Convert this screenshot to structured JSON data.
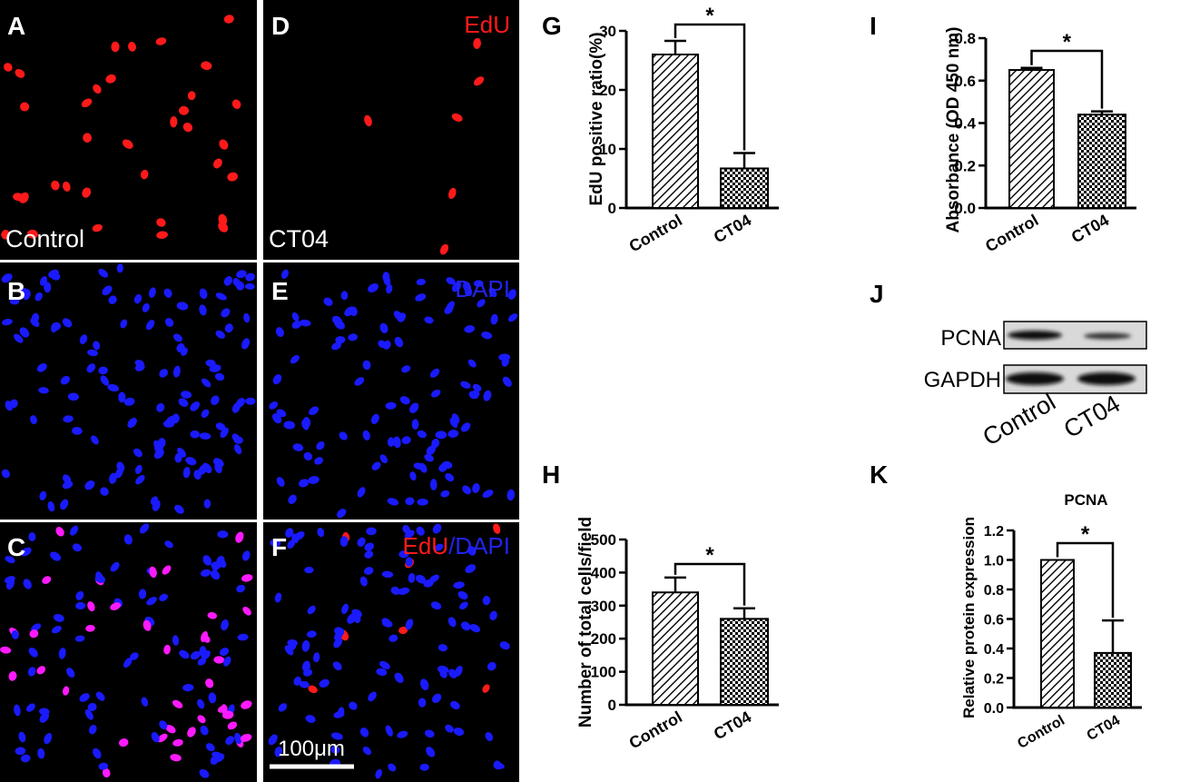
{
  "micrograph_panels": [
    {
      "letter": "A",
      "corner_text": "",
      "bottom_text": "Control"
    },
    {
      "letter": "B",
      "corner_text": "",
      "bottom_text": ""
    },
    {
      "letter": "C",
      "corner_text": "",
      "bottom_text": ""
    },
    {
      "letter": "D",
      "corner_text": "EdU",
      "bottom_text": "CT04"
    },
    {
      "letter": "E",
      "corner_text": "DAPI",
      "bottom_text": ""
    },
    {
      "letter": "F",
      "corner_text_red": "EdU",
      "corner_text_blue": "/DAPI",
      "bottom_text": ""
    }
  ],
  "scale_bar": {
    "label": "100μm"
  },
  "colors": {
    "edu": "#ff1a1a",
    "dapi": "#1a1aff",
    "merge": "#ff1aff",
    "background": "#000000"
  },
  "chart_data": [
    {
      "panel": "G",
      "type": "bar",
      "categories": [
        "Control",
        "CT04"
      ],
      "values": [
        26,
        6.7
      ],
      "errors": [
        2.3,
        2.6
      ],
      "ylabel": "EdU positive ratio(%)",
      "ylim": [
        0,
        30
      ],
      "yticks": [
        0,
        10,
        20,
        30
      ],
      "ytick_labels": [
        "0",
        "10",
        "20",
        "30"
      ],
      "significance": "*",
      "title": ""
    },
    {
      "panel": "H",
      "type": "bar",
      "categories": [
        "Control",
        "CT04"
      ],
      "values": [
        340,
        260
      ],
      "errors": [
        45,
        32
      ],
      "ylabel": "Number of total cells/field",
      "ylim": [
        0,
        500
      ],
      "yticks": [
        0,
        100,
        200,
        300,
        400,
        500
      ],
      "ytick_labels": [
        "0",
        "100",
        "200",
        "300",
        "400",
        "500"
      ],
      "significance": "*",
      "title": ""
    },
    {
      "panel": "I",
      "type": "bar",
      "categories": [
        "Control",
        "CT04"
      ],
      "values": [
        0.65,
        0.44
      ],
      "errors": [
        0.01,
        0.015
      ],
      "ylabel": "Absorbance (OD 450 nm)",
      "ylim": [
        0,
        0.8
      ],
      "yticks": [
        0,
        0.2,
        0.4,
        0.6,
        0.8
      ],
      "ytick_labels": [
        "0.0",
        "0.2",
        "0.4",
        "0.6",
        "0.8"
      ],
      "significance": "*",
      "title": ""
    },
    {
      "panel": "K",
      "type": "bar",
      "categories": [
        "Control",
        "CT04"
      ],
      "values": [
        1.0,
        0.37
      ],
      "errors": [
        0,
        0.22
      ],
      "ylabel": "Relative protein expression",
      "ylim": [
        0,
        1.2
      ],
      "yticks": [
        0,
        0.2,
        0.4,
        0.6,
        0.8,
        1.0,
        1.2
      ],
      "ytick_labels": [
        "0.0",
        "0.2",
        "0.4",
        "0.6",
        "0.8",
        "1.0",
        "1.2"
      ],
      "significance": "*",
      "title": "PCNA"
    }
  ],
  "western_blot": {
    "panel": "J",
    "bands": [
      "PCNA",
      "GAPDH"
    ],
    "lanes": [
      "Control",
      "CT04"
    ]
  }
}
